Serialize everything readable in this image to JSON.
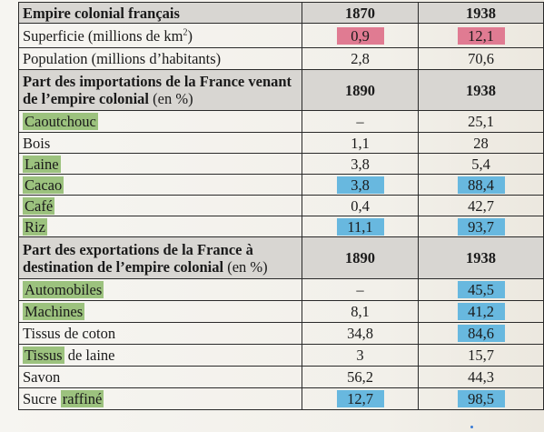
{
  "section1": {
    "title": "Empire colonial français",
    "col1": "1870",
    "col2": "1938",
    "rows": [
      {
        "label": "Superficie (millions de km",
        "sup": "2",
        "label_end": ")",
        "v1": "0,9",
        "v2": "12,1"
      },
      {
        "label": "Population (millions d’habitants)",
        "v1": "2,8",
        "v2": "70,6"
      }
    ]
  },
  "section2": {
    "title": "Part des importations de la France venant de l’empire colonial",
    "title_suffix": " (en %)",
    "col1": "1890",
    "col2": "1938",
    "rows": [
      {
        "label": "Caoutchouc",
        "v1": "–",
        "v2": "25,1"
      },
      {
        "label": "Bois",
        "v1": "1,1",
        "v2": "28"
      },
      {
        "label": "Laine",
        "v1": "3,8",
        "v2": "5,4"
      },
      {
        "label": "Cacao",
        "v1": "3,8",
        "v2": "88,4"
      },
      {
        "label": "Café",
        "v1": "0,4",
        "v2": "42,7"
      },
      {
        "label": "Riz",
        "v1": "11,1",
        "v2": "93,7"
      }
    ]
  },
  "section3": {
    "title": "Part des exportations de la France à destination de l’empire colonial",
    "title_suffix": " (en %)",
    "col1": "1890",
    "col2": "1938",
    "rows": [
      {
        "label": "Automobiles",
        "v1": "–",
        "v2": "45,5"
      },
      {
        "label": "Machines",
        "v1": "8,1",
        "v2": "41,2"
      },
      {
        "label": "Tissus de coton",
        "v1": "34,8",
        "v2": "84,6"
      },
      {
        "label": "Tissus",
        "label_rest": " de laine",
        "v1": "3",
        "v2": "15,7"
      },
      {
        "label": "Savon",
        "v1": "56,2",
        "v2": "44,3"
      },
      {
        "label": "Sucre ",
        "label_rest": "raffiné",
        "v1": "12,7",
        "v2": "98,5"
      }
    ]
  },
  "highlight_colors": {
    "pink": "#e07b92",
    "blue": "#68b8df",
    "green": "#9cc27e"
  }
}
